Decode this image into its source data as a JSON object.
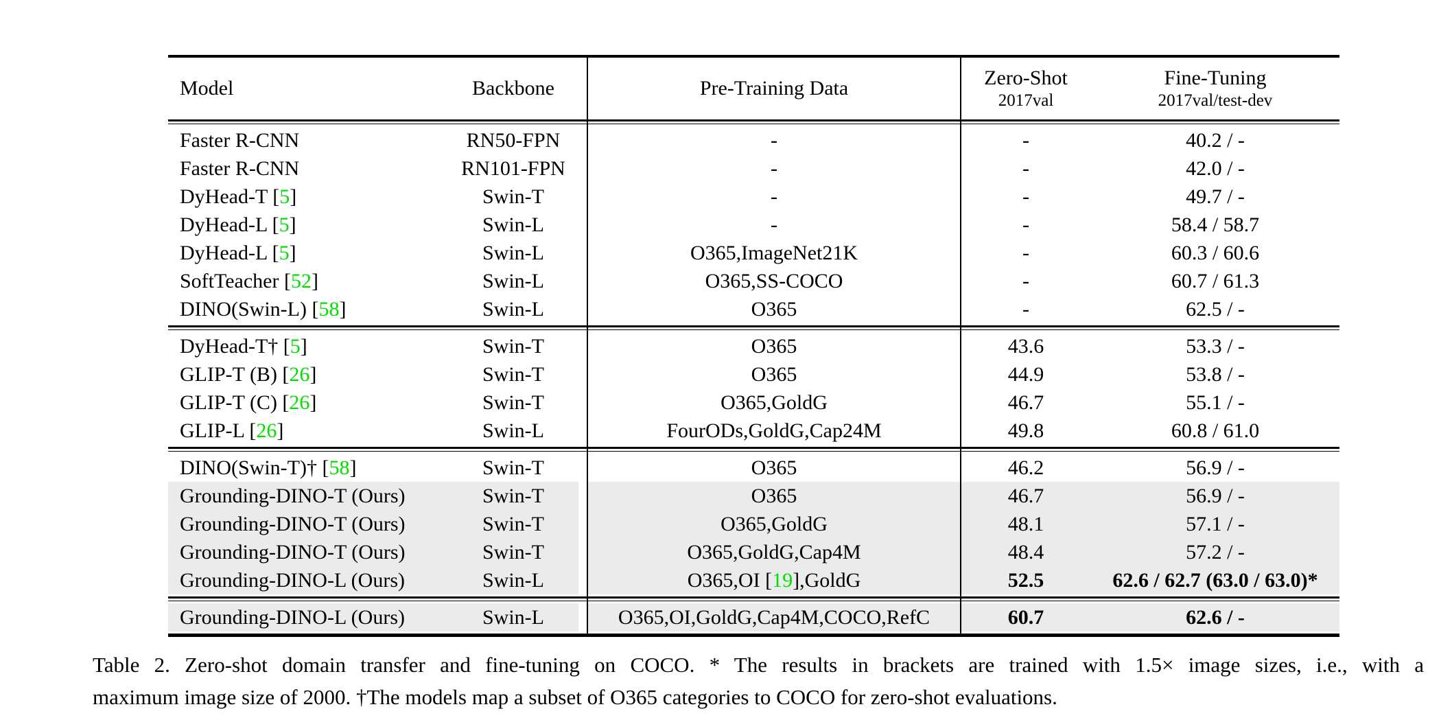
{
  "colors": {
    "reference_green": "#00e000",
    "highlight_gray": "#ebebeb"
  },
  "table": {
    "columns": [
      {
        "label": "Model"
      },
      {
        "label": "Backbone"
      },
      {
        "label": "Pre-Training Data"
      },
      {
        "label": "Zero-Shot",
        "sublabel": "2017val"
      },
      {
        "label": "Fine-Tuning",
        "sublabel": "2017val/test-dev"
      }
    ],
    "groups": [
      [
        {
          "model": "Faster R-CNN",
          "backbone": "RN50-FPN",
          "pretraining": "-",
          "zero_shot": "-",
          "fine_tuning": "40.2 / -"
        },
        {
          "model": "Faster R-CNN",
          "backbone": "RN101-FPN",
          "pretraining": "-",
          "zero_shot": "-",
          "fine_tuning": "42.0 / -"
        },
        {
          "model": "DyHead-T [5]",
          "backbone": "Swin-T",
          "pretraining": "-",
          "zero_shot": "-",
          "fine_tuning": "49.7 / -"
        },
        {
          "model": "DyHead-L [5]",
          "backbone": "Swin-L",
          "pretraining": "-",
          "zero_shot": "-",
          "fine_tuning": "58.4 / 58.7"
        },
        {
          "model": "DyHead-L [5]",
          "backbone": "Swin-L",
          "pretraining": "O365,ImageNet21K",
          "zero_shot": "-",
          "fine_tuning": "60.3 / 60.6"
        },
        {
          "model": "SoftTeacher [52]",
          "backbone": "Swin-L",
          "pretraining": "O365,SS-COCO",
          "zero_shot": "-",
          "fine_tuning": "60.7 / 61.3"
        },
        {
          "model": "DINO(Swin-L) [58]",
          "backbone": "Swin-L",
          "pretraining": "O365",
          "zero_shot": "-",
          "fine_tuning": "62.5 / -"
        }
      ],
      [
        {
          "model": "DyHead-T† [5]",
          "backbone": "Swin-T",
          "pretraining": "O365",
          "zero_shot": "43.6",
          "fine_tuning": "53.3 / -"
        },
        {
          "model": "GLIP-T (B) [26]",
          "backbone": "Swin-T",
          "pretraining": "O365",
          "zero_shot": "44.9",
          "fine_tuning": "53.8 / -"
        },
        {
          "model": "GLIP-T (C) [26]",
          "backbone": "Swin-T",
          "pretraining": "O365,GoldG",
          "zero_shot": "46.7",
          "fine_tuning": "55.1 / -"
        },
        {
          "model": "GLIP-L [26]",
          "backbone": "Swin-L",
          "pretraining": "FourODs,GoldG,Cap24M",
          "zero_shot": "49.8",
          "fine_tuning": "60.8 / 61.0"
        }
      ],
      [
        {
          "model": "DINO(Swin-T)† [58]",
          "backbone": "Swin-T",
          "pretraining": "O365",
          "zero_shot": "46.2",
          "fine_tuning": "56.9 / -"
        },
        {
          "model": "Grounding-DINO-T (Ours)",
          "backbone": "Swin-T",
          "pretraining": "O365",
          "zero_shot": "46.7",
          "fine_tuning": "56.9 / -",
          "highlight": true
        },
        {
          "model": "Grounding-DINO-T (Ours)",
          "backbone": "Swin-T",
          "pretraining": "O365,GoldG",
          "zero_shot": "48.1",
          "fine_tuning": "57.1 / -",
          "highlight": true
        },
        {
          "model": "Grounding-DINO-T (Ours)",
          "backbone": "Swin-T",
          "pretraining": "O365,GoldG,Cap4M",
          "zero_shot": "48.4",
          "fine_tuning": "57.2 / -",
          "highlight": true
        },
        {
          "model": "Grounding-DINO-L (Ours)",
          "backbone": "Swin-L",
          "pretraining": "O365,OI [19],GoldG",
          "zero_shot": "52.5",
          "fine_tuning": "62.6 / 62.7 (63.0 / 63.0)*",
          "highlight": true,
          "bold_scores": true
        }
      ],
      [
        {
          "model": "Grounding-DINO-L (Ours)",
          "backbone": "Swin-L",
          "pretraining": "O365,OI,GoldG,Cap4M,COCO,RefC",
          "zero_shot": "60.7",
          "fine_tuning": "62.6 / -",
          "highlight": true,
          "bold_scores": true
        }
      ]
    ]
  },
  "caption": {
    "line1": "Table 2.  Zero-shot domain transfer and fine-tuning on COCO. * The results in brackets are trained with 1.5× image sizes, i.e., with a",
    "line2": "maximum image size of 2000. †The models map a subset of O365 categories to COCO for zero-shot evaluations."
  }
}
